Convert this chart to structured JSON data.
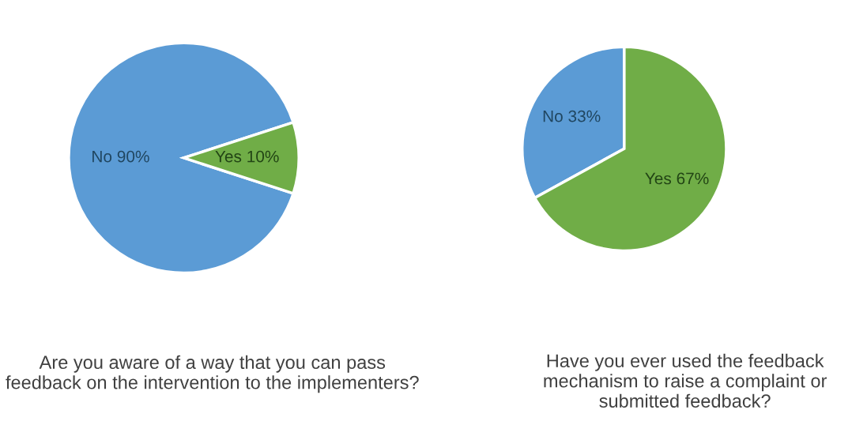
{
  "chart_data": [
    {
      "type": "pie",
      "title": "Are you aware of a way that you can pass feedback on the intervention to the implementers?",
      "categories": [
        "No",
        "Yes"
      ],
      "values": [
        90,
        10
      ],
      "colors": [
        "#5b9bd5",
        "#70ad47"
      ],
      "value_labels": [
        "90%",
        "10%"
      ]
    },
    {
      "type": "pie",
      "title": "Have you ever used the feedback mechanism to raise a complaint or submitted feedback?",
      "categories": [
        "No",
        "Yes"
      ],
      "values": [
        33,
        67
      ],
      "colors": [
        "#5b9bd5",
        "#70ad47"
      ],
      "value_labels": [
        "33%",
        "67%"
      ]
    }
  ]
}
